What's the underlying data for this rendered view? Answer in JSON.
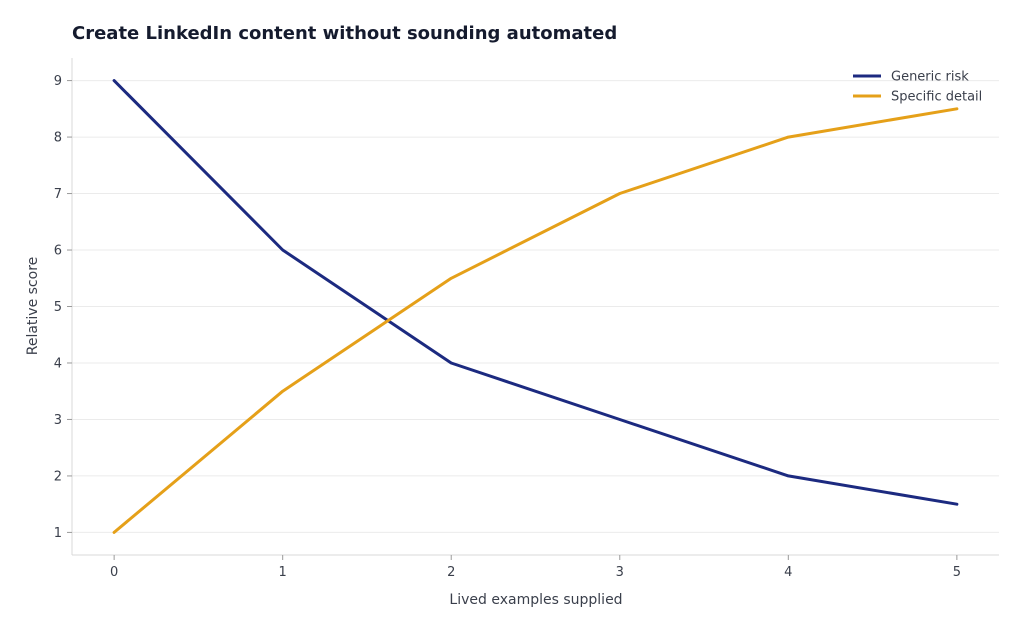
{
  "chart_data": {
    "type": "line",
    "title": "Create LinkedIn content without sounding automated",
    "xlabel": "Lived examples supplied",
    "ylabel": "Relative score",
    "x": [
      0,
      1,
      2,
      3,
      4,
      5
    ],
    "xlim": [
      -0.25,
      5.25
    ],
    "ylim": [
      0.6,
      9.4
    ],
    "xticks": [
      0,
      1,
      2,
      3,
      4,
      5
    ],
    "yticks": [
      1,
      2,
      3,
      4,
      5,
      6,
      7,
      8,
      9
    ],
    "grid": "horizontal",
    "legend_position": "top-right",
    "series": [
      {
        "name": "Generic risk",
        "values": [
          9,
          6,
          4,
          3,
          2,
          1.5
        ],
        "color": "#1c2a80"
      },
      {
        "name": "Specific detail",
        "values": [
          1,
          3.5,
          5.5,
          7,
          8,
          8.5
        ],
        "color": "#e5a019"
      }
    ]
  }
}
